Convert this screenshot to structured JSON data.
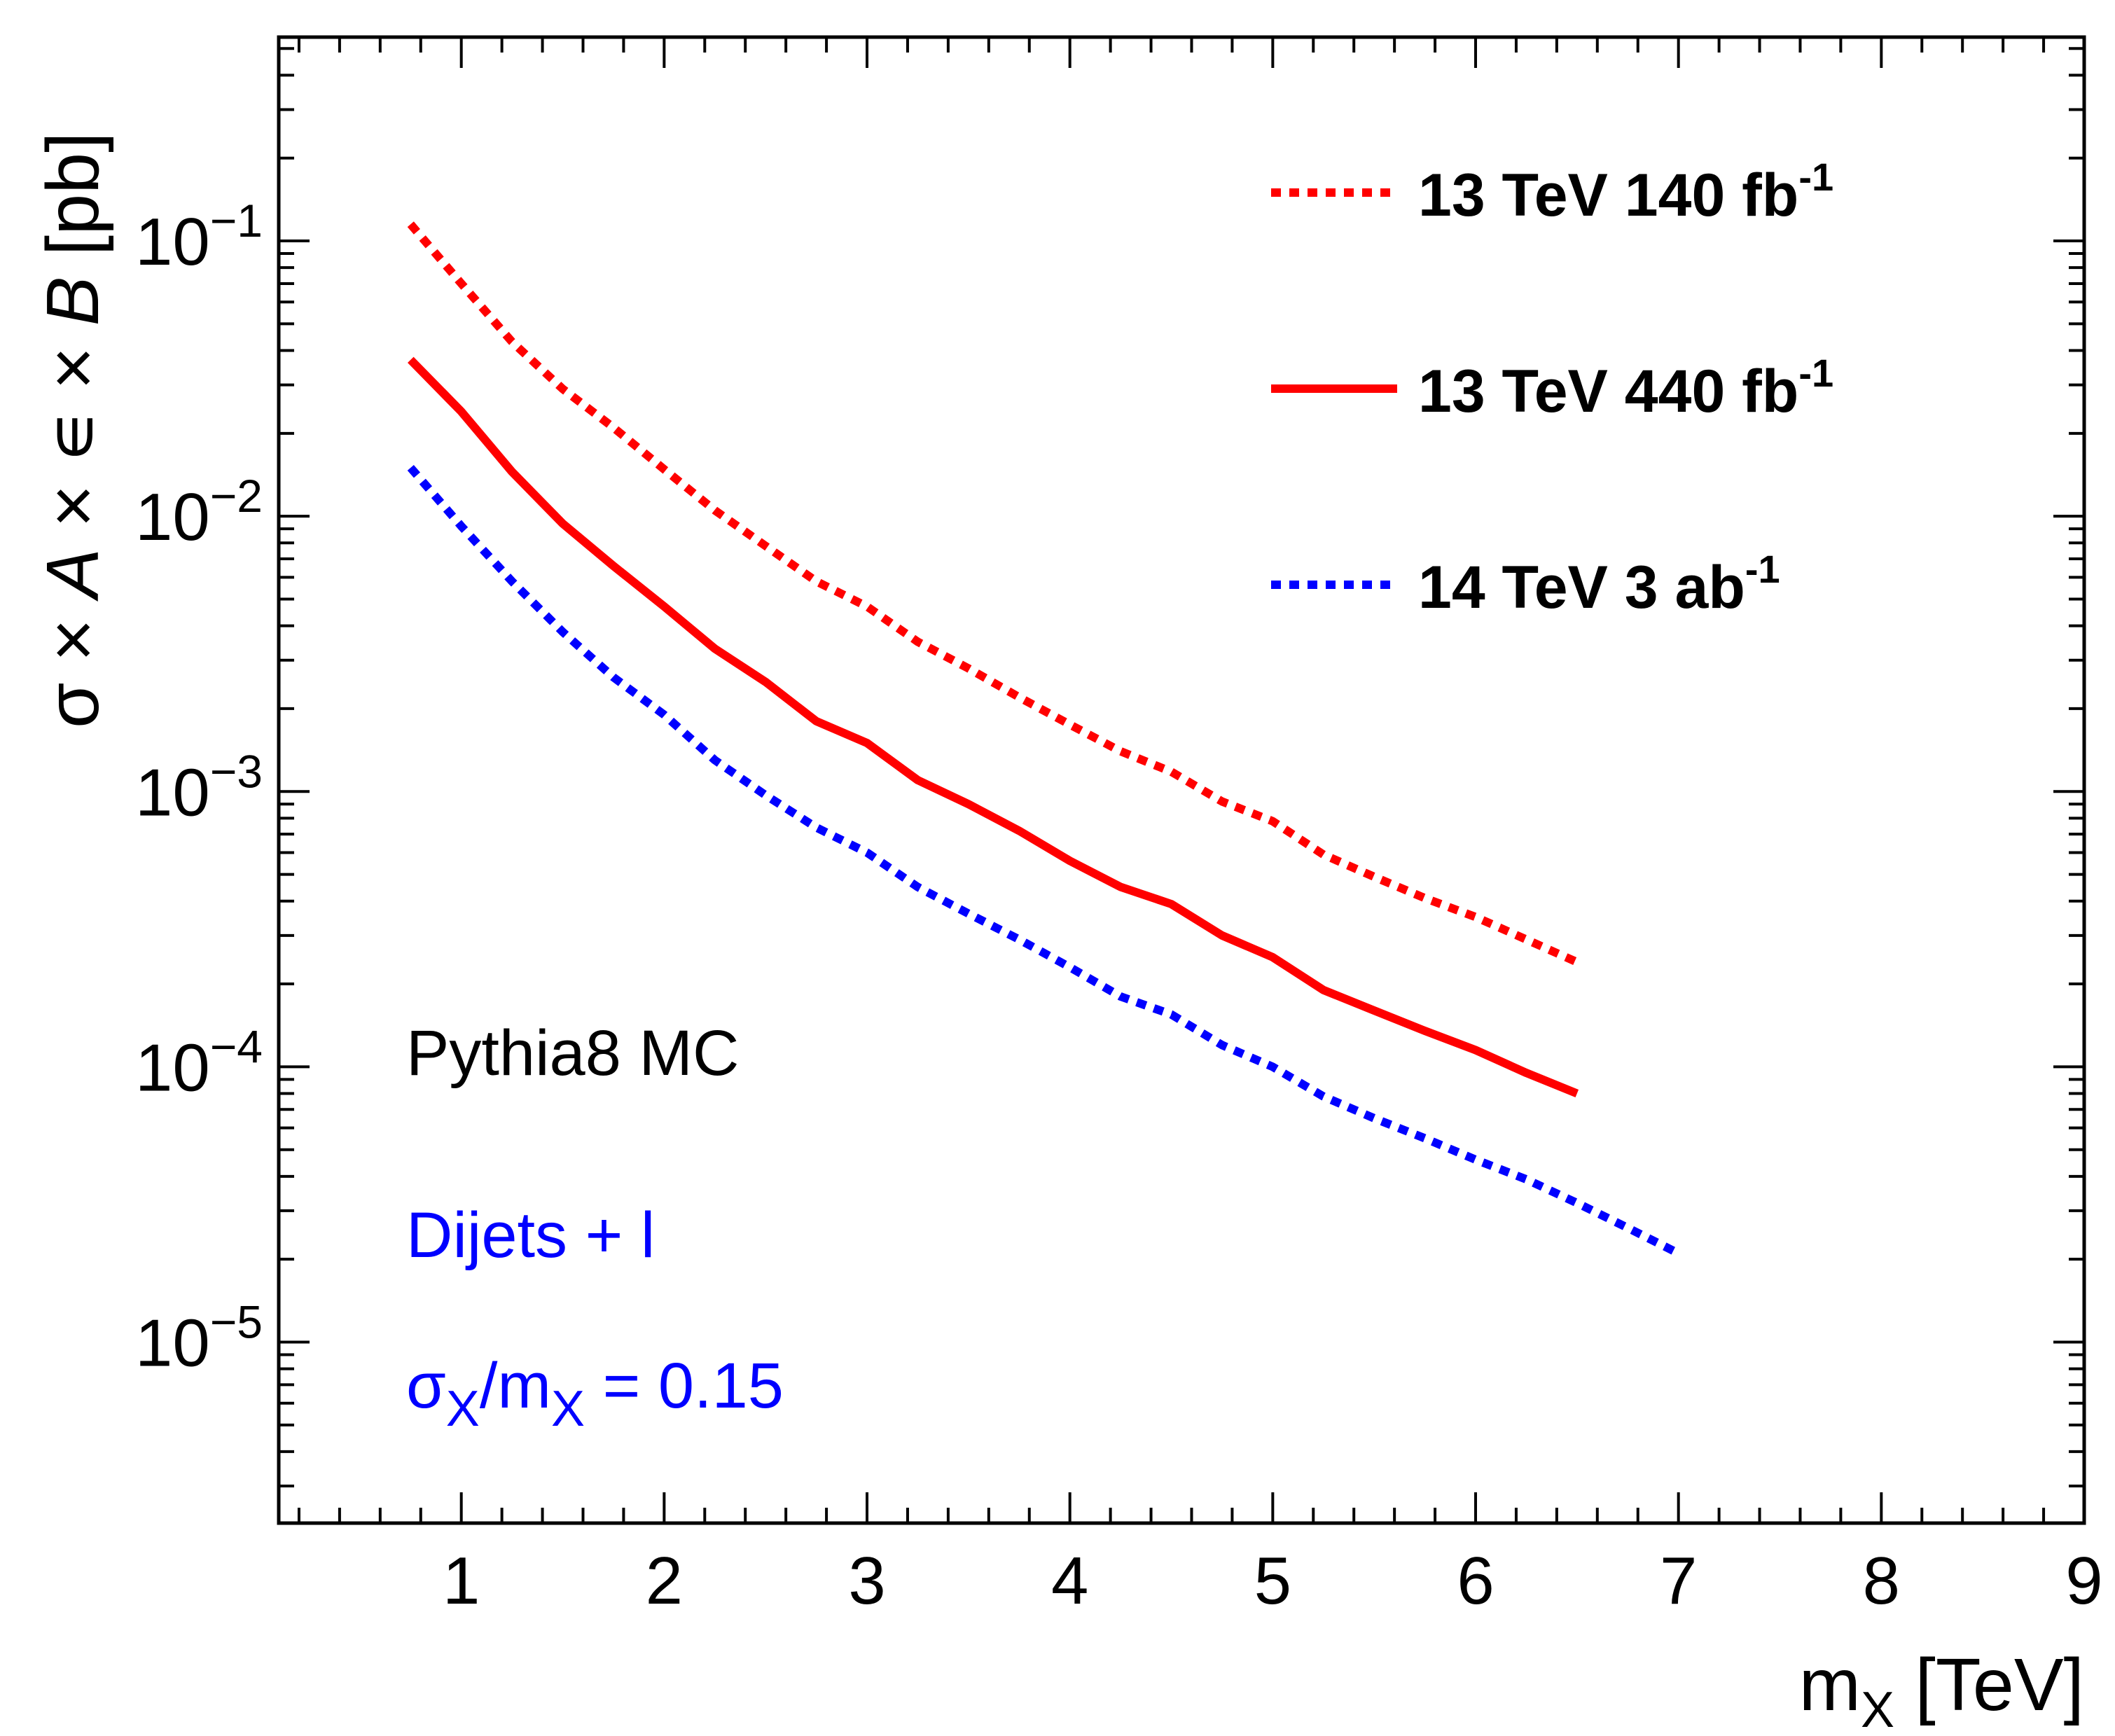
{
  "chart_data": {
    "type": "line",
    "title": "",
    "xlabel": "m",
    "xlabel_sub": "X",
    "xlabel_unit": " [TeV]",
    "ylabel_parts": [
      "σ × ",
      "A",
      " × ∊ × ",
      "B",
      " [pb]"
    ],
    "x_scale": "linear",
    "y_scale": "log",
    "xlim": [
      0.1,
      9.0
    ],
    "ylim": [
      2.2e-06,
      0.55
    ],
    "x_ticks": [
      {
        "value": 1,
        "label": "1"
      },
      {
        "value": 2,
        "label": "2"
      },
      {
        "value": 3,
        "label": "3"
      },
      {
        "value": 4,
        "label": "4"
      },
      {
        "value": 5,
        "label": "5"
      },
      {
        "value": 6,
        "label": "6"
      },
      {
        "value": 7,
        "label": "7"
      },
      {
        "value": 8,
        "label": "8"
      },
      {
        "value": 9,
        "label": "9"
      }
    ],
    "y_ticks": [
      {
        "value": 0.1,
        "base": "10",
        "exp": "−1"
      },
      {
        "value": 0.01,
        "base": "10",
        "exp": "−2"
      },
      {
        "value": 0.001,
        "base": "10",
        "exp": "−3"
      },
      {
        "value": 0.0001,
        "base": "10",
        "exp": "−4"
      },
      {
        "value": 1e-05,
        "base": "10",
        "exp": "−5"
      }
    ],
    "series": [
      {
        "name": "13 TeV 140 fb",
        "name_sup": "-1",
        "color": "#ff0000",
        "style": "dotted",
        "x": [
          0.75,
          1.0,
          1.25,
          1.5,
          1.75,
          2.0,
          2.25,
          2.5,
          2.75,
          3.0,
          3.25,
          3.5,
          3.75,
          4.0,
          4.25,
          4.5,
          4.75,
          5.0,
          5.25,
          5.5,
          5.75,
          6.0,
          6.25,
          6.5
        ],
        "y": [
          0.115,
          0.07,
          0.043,
          0.029,
          0.021,
          0.0148,
          0.0105,
          0.0078,
          0.0058,
          0.0047,
          0.0035,
          0.0028,
          0.0022,
          0.00175,
          0.0014,
          0.00118,
          0.00092,
          0.00078,
          0.00059,
          0.00049,
          0.00041,
          0.00035,
          0.00029,
          0.00024
        ]
      },
      {
        "name": "13 TeV 440 fb",
        "name_sup": "-1",
        "color": "#ff0000",
        "style": "solid",
        "x": [
          0.75,
          1.0,
          1.25,
          1.5,
          1.75,
          2.0,
          2.25,
          2.5,
          2.75,
          3.0,
          3.25,
          3.5,
          3.75,
          4.0,
          4.25,
          4.5,
          4.75,
          5.0,
          5.25,
          5.5,
          5.75,
          6.0,
          6.25,
          6.5
        ],
        "y": [
          0.037,
          0.024,
          0.0145,
          0.0094,
          0.0066,
          0.0047,
          0.0033,
          0.0025,
          0.0018,
          0.0015,
          0.0011,
          0.0009,
          0.00072,
          0.00056,
          0.00045,
          0.00039,
          0.0003,
          0.00025,
          0.00019,
          0.00016,
          0.000135,
          0.000115,
          9.5e-05,
          8e-05
        ]
      },
      {
        "name": "14 TeV 3 ab",
        "name_sup": "-1",
        "color": "#0000ff",
        "style": "dotted",
        "x": [
          0.75,
          1.0,
          1.25,
          1.5,
          1.75,
          2.0,
          2.25,
          2.5,
          2.75,
          3.0,
          3.25,
          3.5,
          3.75,
          4.0,
          4.25,
          4.5,
          4.75,
          5.0,
          5.25,
          5.5,
          5.75,
          6.0,
          6.25,
          6.5,
          6.75,
          7.0
        ],
        "y": [
          0.015,
          0.0092,
          0.0058,
          0.0038,
          0.0026,
          0.0019,
          0.0013,
          0.00097,
          0.00074,
          0.0006,
          0.00045,
          0.00036,
          0.00029,
          0.00023,
          0.00018,
          0.000155,
          0.00012,
          0.0001,
          7.8e-05,
          6.5e-05,
          5.5e-05,
          4.6e-05,
          3.9e-05,
          3.2e-05,
          2.6e-05,
          2.1e-05
        ]
      }
    ],
    "legend_placement": "top-right",
    "annotations": {
      "generator": "Pythia8 MC",
      "generator_color": "#000000",
      "channel": "Dijets + l",
      "channel_color": "#0000ff",
      "width_symbol": "σ",
      "width_sub": "X",
      "width_mid": "/m",
      "width_sub2": "X",
      "width_value": " = 0.15",
      "width_color": "#0000ff"
    }
  }
}
